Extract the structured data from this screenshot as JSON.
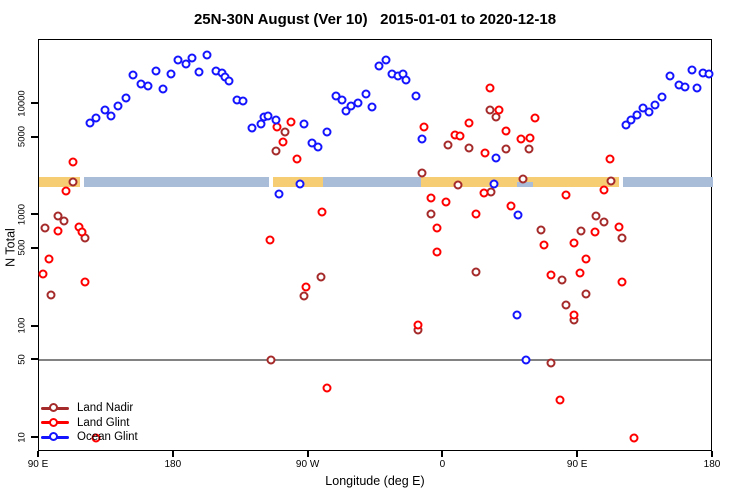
{
  "chart_data": {
    "type": "scatter",
    "title": "25N-30N August (Ver 10)   2015-01-01 to 2020-12-18",
    "xlabel": "Longitude (deg E)",
    "ylabel": "N Total",
    "x_axis": {
      "range": [
        90,
        540
      ],
      "ticks": [
        90,
        180,
        270,
        360,
        450,
        540
      ],
      "labels": [
        "90 E",
        "180",
        "90 W",
        "0",
        "90 E",
        "180"
      ]
    },
    "y_axis": {
      "scale": "log",
      "ticks": [
        10,
        50,
        100,
        500,
        1000,
        5000,
        10000
      ],
      "labels": [
        "10",
        "50",
        "100",
        "500",
        "1000",
        "5000",
        "10000"
      ]
    },
    "grid": "off",
    "legend_position": "bottom-left",
    "reference_line_y": 50,
    "band": {
      "n_center": 2000,
      "segments": [
        {
          "color": "#F7CD74",
          "from": 90,
          "to": 117.5
        },
        {
          "color": "#A9BCD8",
          "from": 120,
          "to": 243.5
        },
        {
          "color": "#F7CD74",
          "from": 246,
          "to": 279.5
        },
        {
          "color": "#A9BCD8",
          "from": 279.5,
          "to": 345
        },
        {
          "color": "#F7CD74",
          "from": 345,
          "to": 477
        },
        {
          "color": "#A9BCD8",
          "from": 409,
          "to": 420,
          "half": "lower"
        },
        {
          "color": "#A9BCD8",
          "from": 480,
          "to": 540
        }
      ]
    },
    "series": [
      {
        "id": "land-nadir",
        "name": "Land Nadir",
        "color": "#A52A2A",
        "points": [
          [
            113,
            2000
          ],
          [
            103,
            990
          ],
          [
            107,
            890
          ],
          [
            94,
            770
          ],
          [
            121,
            630
          ],
          [
            98,
            193
          ],
          [
            245,
            50
          ],
          [
            248,
            3790
          ],
          [
            254,
            5620
          ],
          [
            267,
            189
          ],
          [
            278,
            280
          ],
          [
            343,
            93
          ],
          [
            346,
            2400
          ],
          [
            352,
            1030
          ],
          [
            363,
            4290
          ],
          [
            370,
            1880
          ],
          [
            377,
            4040
          ],
          [
            382,
            310
          ],
          [
            391,
            8850
          ],
          [
            392,
            1620
          ],
          [
            395,
            7660
          ],
          [
            402,
            3950
          ],
          [
            413,
            2120
          ],
          [
            417,
            3950
          ],
          [
            425,
            740
          ],
          [
            432,
            47
          ],
          [
            439,
            263
          ],
          [
            442,
            157
          ],
          [
            447,
            115
          ],
          [
            452,
            724
          ],
          [
            455,
            197
          ],
          [
            462,
            990
          ],
          [
            467,
            873
          ],
          [
            472,
            2030
          ],
          [
            479,
            627
          ]
        ]
      },
      {
        "id": "land-glint",
        "name": "Land Glint",
        "color": "#FF0000",
        "points": [
          [
            113,
            3020
          ],
          [
            108,
            1660
          ],
          [
            103,
            724
          ],
          [
            117,
            787
          ],
          [
            119,
            710
          ],
          [
            97,
            406
          ],
          [
            93,
            298
          ],
          [
            121,
            252
          ],
          [
            128,
            10
          ],
          [
            244,
            600
          ],
          [
            249,
            6230
          ],
          [
            253,
            4570
          ],
          [
            258,
            6900
          ],
          [
            262,
            3210
          ],
          [
            268,
            227
          ],
          [
            279,
            1070
          ],
          [
            282,
            28
          ],
          [
            343,
            104
          ],
          [
            347,
            6230
          ],
          [
            352,
            1430
          ],
          [
            356,
            771
          ],
          [
            356,
            469
          ],
          [
            362,
            1320
          ],
          [
            368,
            5280
          ],
          [
            371,
            5180
          ],
          [
            377,
            6760
          ],
          [
            382,
            1030
          ],
          [
            387,
            1590
          ],
          [
            388,
            3640
          ],
          [
            391,
            13900
          ],
          [
            397,
            8850
          ],
          [
            402,
            5740
          ],
          [
            405,
            1210
          ],
          [
            412,
            4860
          ],
          [
            418,
            4960
          ],
          [
            421,
            7500
          ],
          [
            427,
            542
          ],
          [
            432,
            292
          ],
          [
            438,
            22
          ],
          [
            442,
            1520
          ],
          [
            447,
            565
          ],
          [
            447,
            127
          ],
          [
            451,
            303
          ],
          [
            455,
            406
          ],
          [
            461,
            710
          ],
          [
            467,
            1690
          ],
          [
            471,
            3210
          ],
          [
            477,
            787
          ],
          [
            479,
            252
          ],
          [
            487,
            10
          ]
        ]
      },
      {
        "id": "ocean-glint",
        "name": "Ocean Glint",
        "color": "#1414FF",
        "points": [
          [
            124,
            6760
          ],
          [
            128,
            7500
          ],
          [
            134,
            8850
          ],
          [
            138,
            7820
          ],
          [
            143,
            9610
          ],
          [
            148,
            11300
          ],
          [
            153,
            18200
          ],
          [
            158,
            15100
          ],
          [
            163,
            14500
          ],
          [
            168,
            19800
          ],
          [
            173,
            13650
          ],
          [
            178,
            18600
          ],
          [
            183,
            24900
          ],
          [
            188,
            22900
          ],
          [
            192,
            25900
          ],
          [
            197,
            19400
          ],
          [
            202,
            27600
          ],
          [
            208,
            19800
          ],
          [
            212,
            19000
          ],
          [
            214,
            17500
          ],
          [
            217,
            16100
          ],
          [
            222,
            10900
          ],
          [
            226,
            10600
          ],
          [
            232,
            6110
          ],
          [
            238,
            6620
          ],
          [
            240,
            7660
          ],
          [
            243,
            7820
          ],
          [
            248,
            7190
          ],
          [
            250,
            1560
          ],
          [
            264,
            1910
          ],
          [
            267,
            6620
          ],
          [
            272,
            4480
          ],
          [
            276,
            4120
          ],
          [
            282,
            5620
          ],
          [
            288,
            11800
          ],
          [
            292,
            10900
          ],
          [
            295,
            8670
          ],
          [
            298,
            9610
          ],
          [
            303,
            10200
          ],
          [
            308,
            12300
          ],
          [
            312,
            9420
          ],
          [
            317,
            22000
          ],
          [
            322,
            24900
          ],
          [
            326,
            18600
          ],
          [
            330,
            17900
          ],
          [
            333,
            18600
          ],
          [
            335,
            16400
          ],
          [
            342,
            11800
          ],
          [
            346,
            4860
          ],
          [
            394,
            1910
          ],
          [
            395,
            3280
          ],
          [
            410,
            1010
          ],
          [
            409,
            127
          ],
          [
            415,
            50
          ],
          [
            482,
            6490
          ],
          [
            485,
            7190
          ],
          [
            489,
            7980
          ],
          [
            493,
            9220
          ],
          [
            497,
            8490
          ],
          [
            501,
            9800
          ],
          [
            506,
            11600
          ],
          [
            511,
            17900
          ],
          [
            517,
            14800
          ],
          [
            521,
            14200
          ],
          [
            526,
            20200
          ],
          [
            529,
            13900
          ],
          [
            533,
            19000
          ],
          [
            537,
            18600
          ]
        ]
      }
    ]
  }
}
